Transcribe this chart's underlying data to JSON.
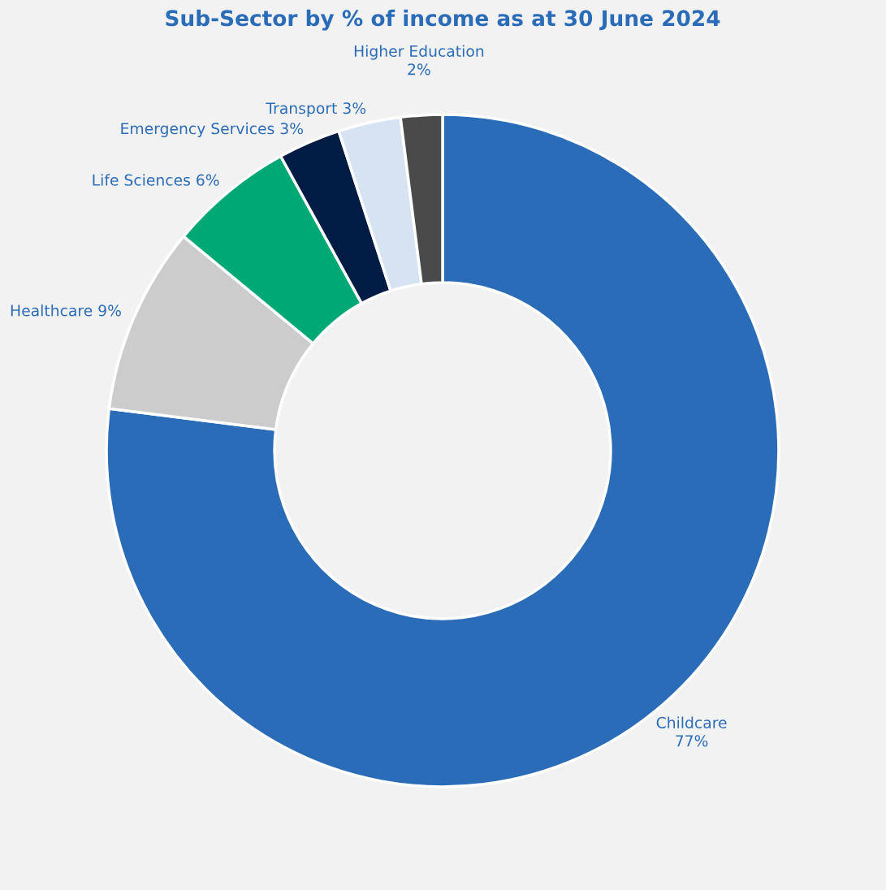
{
  "chart_data": {
    "type": "donut",
    "title": "Sub-Sector by % of income as at 30 June 2024",
    "categories": [
      "Childcare",
      "Healthcare",
      "Life Sciences",
      "Emergency Services",
      "Transport",
      "Higher Education"
    ],
    "values": [
      77,
      9,
      6,
      3,
      3,
      2
    ],
    "value_labels": [
      "77%",
      "9%",
      "6%",
      "3%",
      "3%",
      "2%"
    ],
    "colors": [
      "#2b6cb9",
      "#cccccc",
      "#00a876",
      "#001c44",
      "#d6e3f3",
      "#4a4a4a"
    ],
    "legend": false
  }
}
